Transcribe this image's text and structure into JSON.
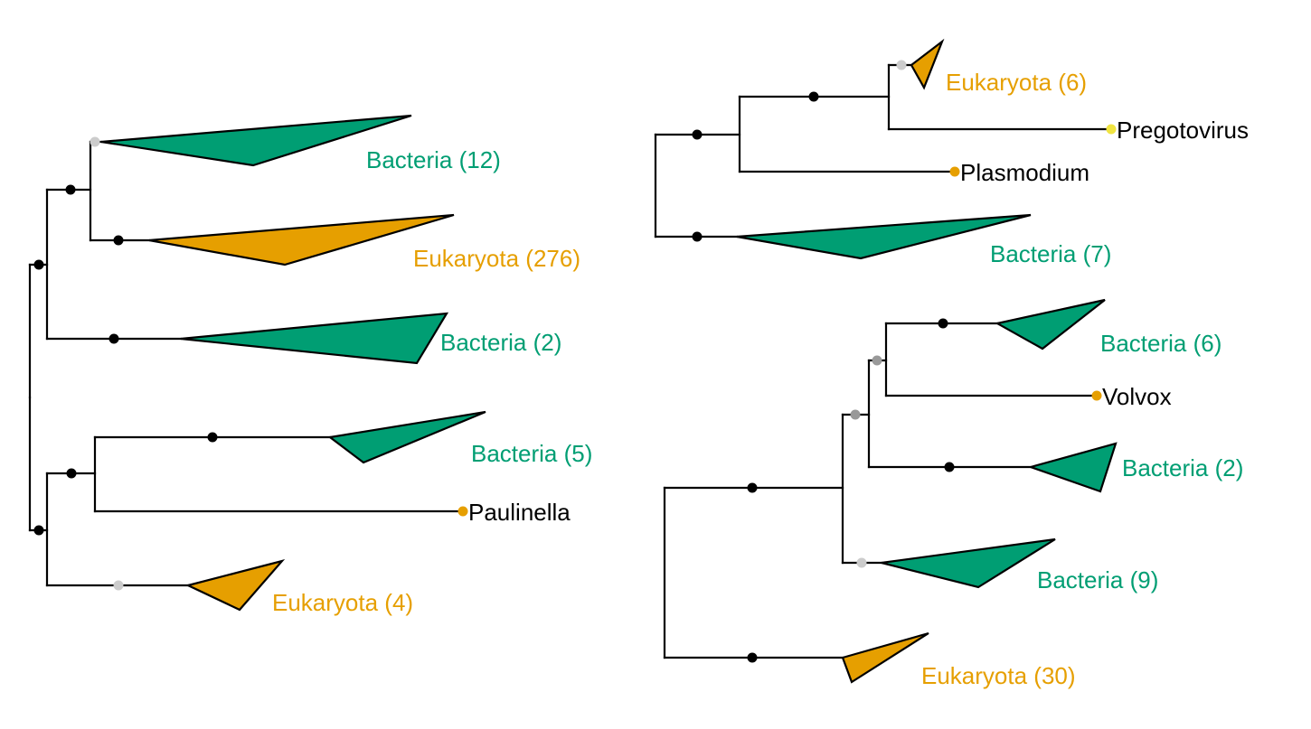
{
  "colors": {
    "bacteria": "#009E73",
    "eukaryota": "#E69F00",
    "branch": "#000000",
    "support_high": "#000000",
    "support_mid": "#999999",
    "support_low": "#cccccc",
    "virus_tip": "#F0E442",
    "euk_tip": "#E69F00"
  },
  "left_tree": {
    "clades": [
      {
        "label": "Bacteria (12)",
        "domain": "bacteria"
      },
      {
        "label": "Eukaryota (276)",
        "domain": "eukaryota"
      },
      {
        "label": "Bacteria (2)",
        "domain": "bacteria"
      },
      {
        "label": "Bacteria (5)",
        "domain": "bacteria"
      },
      {
        "label": "Eukaryota (4)",
        "domain": "eukaryota"
      }
    ],
    "leaves": [
      {
        "label": "Paulinella"
      }
    ]
  },
  "right_top_tree": {
    "clades": [
      {
        "label": "Eukaryota (6)",
        "domain": "eukaryota"
      },
      {
        "label": "Bacteria (7)",
        "domain": "bacteria"
      }
    ],
    "leaves": [
      {
        "label": "Pregotovirus"
      },
      {
        "label": "Plasmodium"
      }
    ]
  },
  "right_bottom_tree": {
    "clades": [
      {
        "label": "Bacteria (6)",
        "domain": "bacteria"
      },
      {
        "label": "Bacteria (2)",
        "domain": "bacteria"
      },
      {
        "label": "Bacteria (9)",
        "domain": "bacteria"
      },
      {
        "label": "Eukaryota (30)",
        "domain": "eukaryota"
      }
    ],
    "leaves": [
      {
        "label": "Volvox"
      }
    ]
  }
}
